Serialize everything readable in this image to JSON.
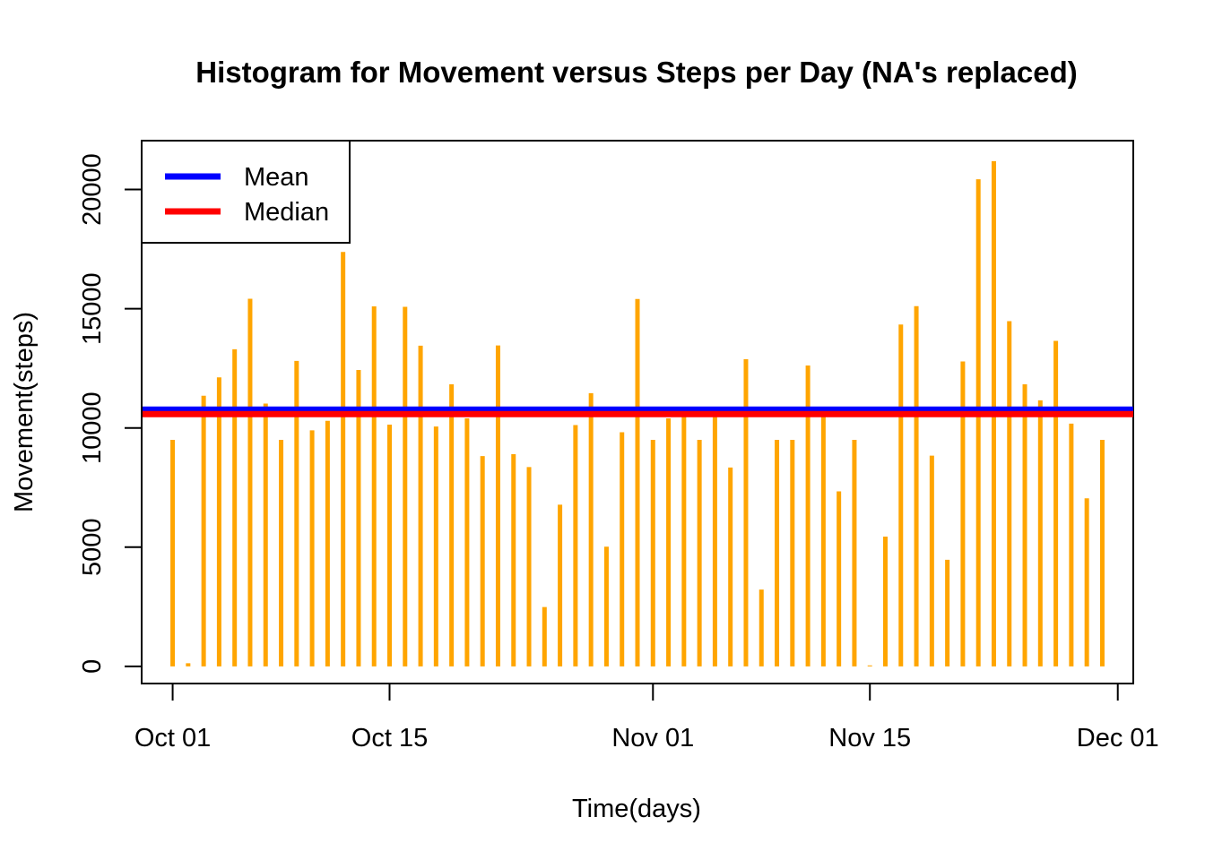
{
  "chart_data": {
    "type": "bar",
    "title": "Histogram for Movement versus Steps per Day (NA's replaced)",
    "xlabel": "Time(days)",
    "ylabel": "Movement(steps)",
    "x": [
      "2012-10-01",
      "2012-10-02",
      "2012-10-03",
      "2012-10-04",
      "2012-10-05",
      "2012-10-06",
      "2012-10-07",
      "2012-10-08",
      "2012-10-09",
      "2012-10-10",
      "2012-10-11",
      "2012-10-12",
      "2012-10-13",
      "2012-10-14",
      "2012-10-15",
      "2012-10-16",
      "2012-10-17",
      "2012-10-18",
      "2012-10-19",
      "2012-10-20",
      "2012-10-21",
      "2012-10-22",
      "2012-10-23",
      "2012-10-24",
      "2012-10-25",
      "2012-10-26",
      "2012-10-27",
      "2012-10-28",
      "2012-10-29",
      "2012-10-30",
      "2012-10-31",
      "2012-11-01",
      "2012-11-02",
      "2012-11-03",
      "2012-11-04",
      "2012-11-05",
      "2012-11-06",
      "2012-11-07",
      "2012-11-08",
      "2012-11-09",
      "2012-11-10",
      "2012-11-11",
      "2012-11-12",
      "2012-11-13",
      "2012-11-14",
      "2012-11-15",
      "2012-11-16",
      "2012-11-17",
      "2012-11-18",
      "2012-11-19",
      "2012-11-20",
      "2012-11-21",
      "2012-11-22",
      "2012-11-23",
      "2012-11-24",
      "2012-11-25",
      "2012-11-26",
      "2012-11-27",
      "2012-11-28",
      "2012-11-29",
      "2012-11-30"
    ],
    "series": [
      {
        "values": [
          9500,
          130,
          11350,
          12120,
          13300,
          15420,
          11020,
          9500,
          12810,
          9900,
          10300,
          17380,
          12430,
          15100,
          10140,
          15080,
          13450,
          10060,
          11830,
          10400,
          8820,
          13460,
          8900,
          8360,
          2490,
          6780,
          10120,
          11460,
          5020,
          9820,
          15410,
          9500,
          10400,
          10600,
          9500,
          10500,
          8340,
          12880,
          3220,
          9500,
          9500,
          12620,
          10770,
          7340,
          9500,
          40,
          5440,
          14340,
          15110,
          8840,
          4470,
          12790,
          20430,
          21190,
          14480,
          11830,
          11160,
          13650,
          10180,
          7050,
          9500
        ]
      }
    ],
    "mean": 10766.19,
    "median": 10766.19,
    "xlim": [
      "2012-09-29",
      "2012-12-02"
    ],
    "ylim": [
      -720,
      22050
    ],
    "x_ticks": [
      {
        "date": "2012-10-01",
        "label": "Oct 01"
      },
      {
        "date": "2012-10-15",
        "label": "Oct 15"
      },
      {
        "date": "2012-11-01",
        "label": "Nov 01"
      },
      {
        "date": "2012-11-15",
        "label": "Nov 15"
      },
      {
        "date": "2012-12-01",
        "label": "Dec 01"
      }
    ],
    "y_ticks": [
      0,
      5000,
      10000,
      15000,
      20000
    ],
    "y_tick_labels": [
      "0",
      "5000",
      "10000",
      "15000",
      "20000"
    ],
    "legend": {
      "position": "top-left",
      "entries": [
        {
          "label": "Mean",
          "color": "#0000FF"
        },
        {
          "label": "Median",
          "color": "#FF0000"
        }
      ]
    },
    "colors": {
      "bars": "#FFA500",
      "mean": "#0000FF",
      "median": "#FF0000"
    },
    "grid": false
  }
}
